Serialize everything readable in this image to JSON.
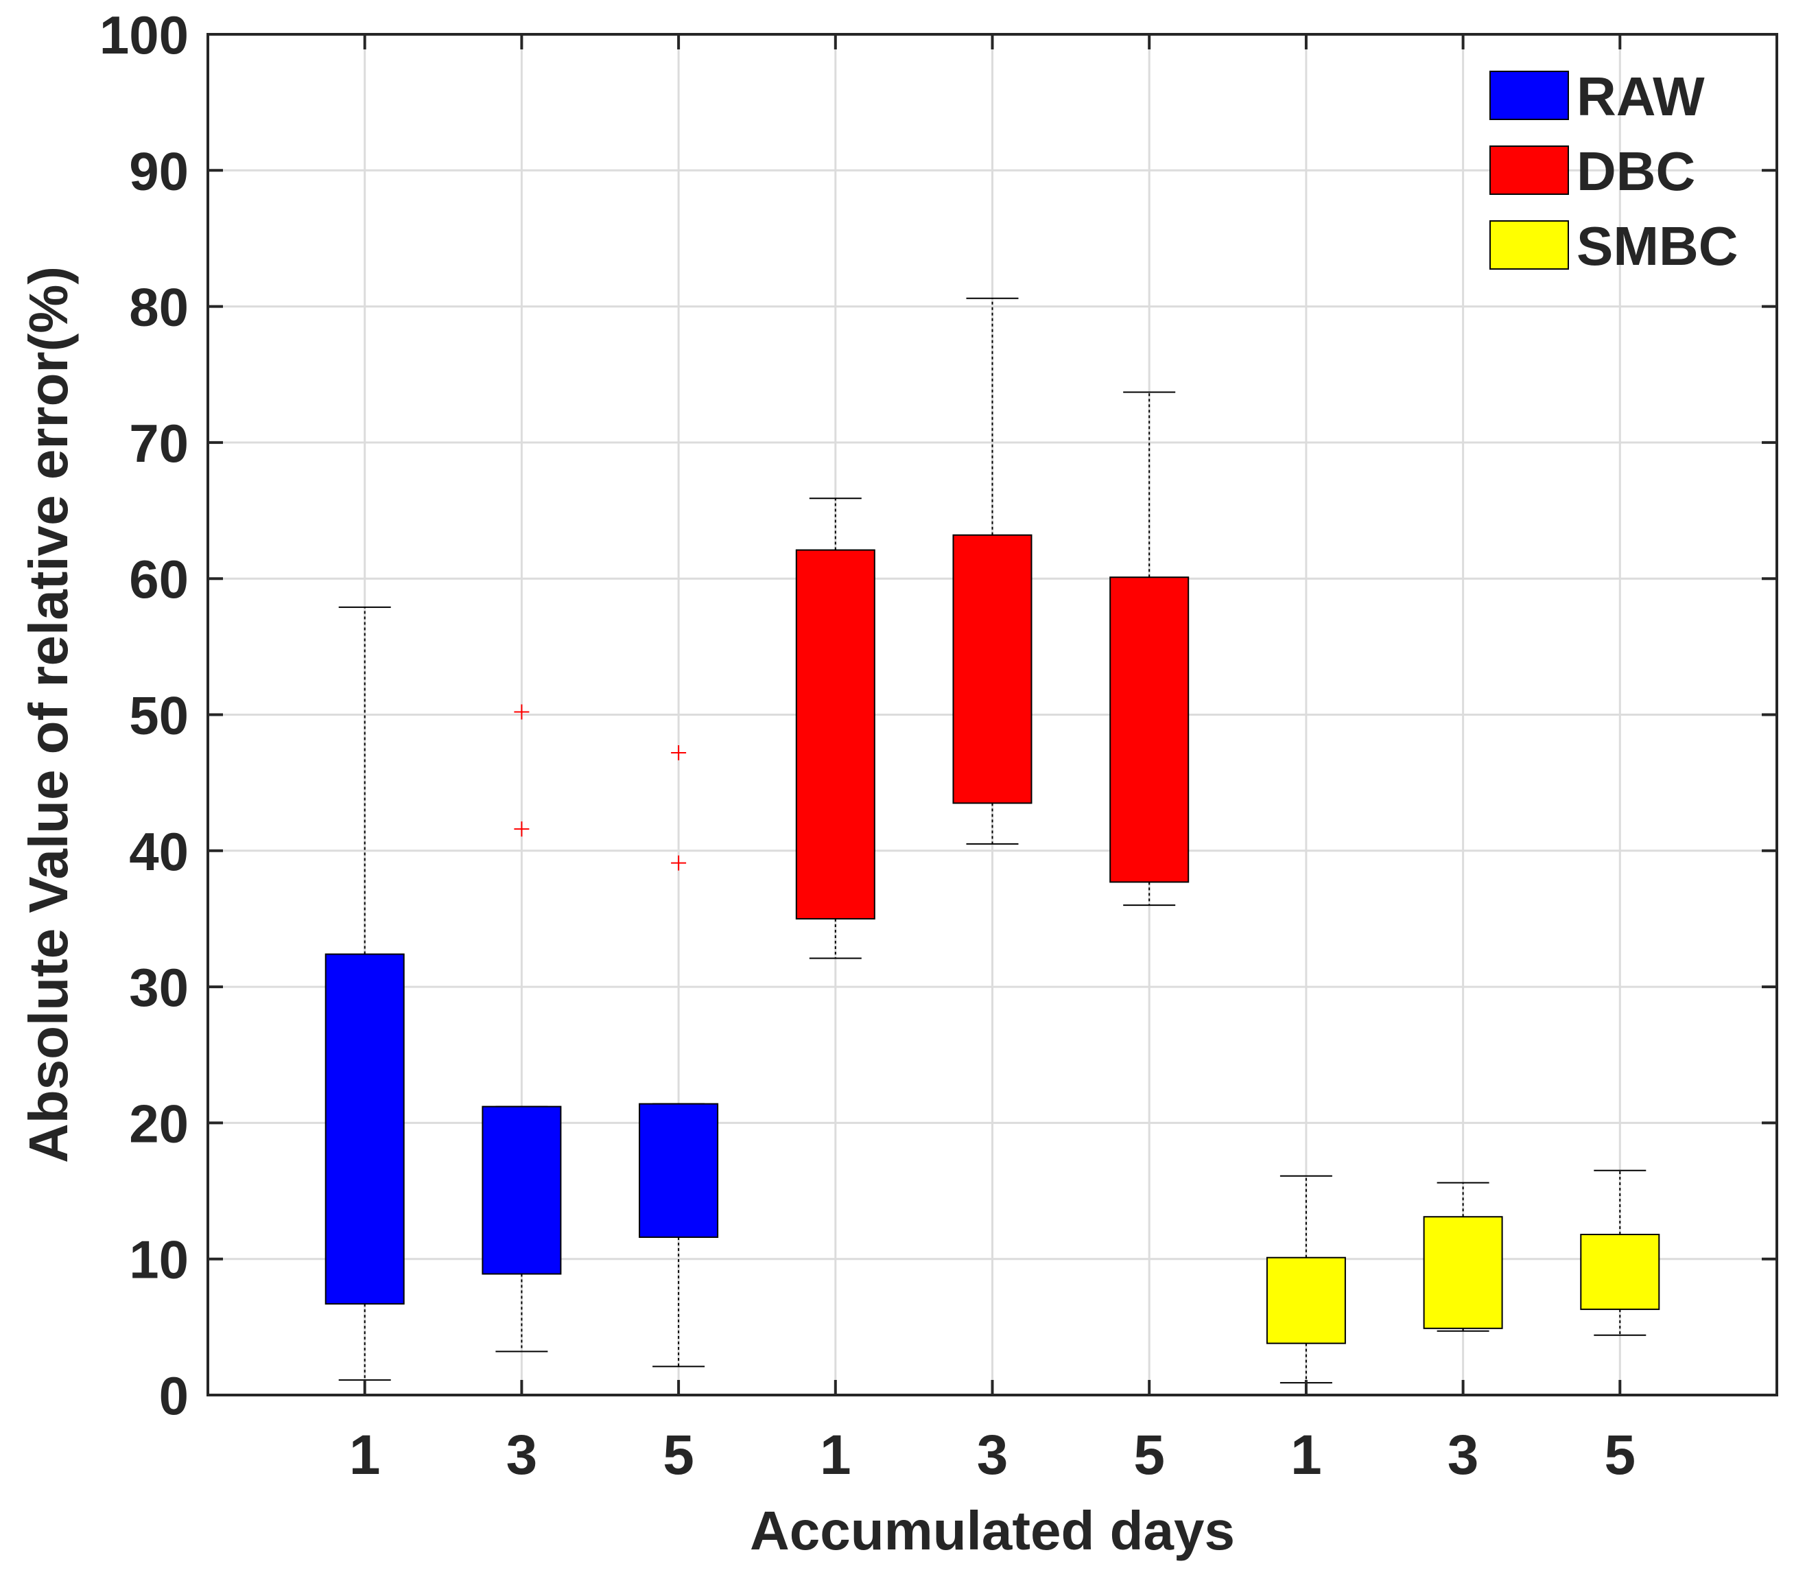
{
  "chart_data": {
    "type": "boxplot",
    "title": "",
    "xlabel": "Accumulated days",
    "ylabel": "Absolute Value of relative error(%)",
    "ylim": [
      0,
      100
    ],
    "yticks": [
      "0",
      "10",
      "20",
      "30",
      "40",
      "50",
      "60",
      "70",
      "80",
      "90",
      "100"
    ],
    "xlim": [
      0,
      10
    ],
    "grid": true,
    "legend_position": "top-right",
    "categories": [
      "1",
      "3",
      "5",
      "1",
      "3",
      "5",
      "1",
      "3",
      "5"
    ],
    "series": [
      {
        "name": "RAW",
        "color": "#0000ff",
        "boxes": [
          {
            "x": 1,
            "label": "1",
            "whisker_low": 1.1,
            "q1": 6.7,
            "q3": 32.4,
            "whisker_high": 57.9,
            "outliers": []
          },
          {
            "x": 2,
            "label": "3",
            "whisker_low": 3.2,
            "q1": 8.9,
            "q3": 21.2,
            "whisker_high": 21.2,
            "outliers": [
              41.6,
              50.2
            ]
          },
          {
            "x": 3,
            "label": "5",
            "whisker_low": 2.1,
            "q1": 11.6,
            "q3": 21.4,
            "whisker_high": 21.4,
            "outliers": [
              39.1,
              47.2
            ]
          }
        ]
      },
      {
        "name": "DBC",
        "color": "#ff0000",
        "boxes": [
          {
            "x": 4,
            "label": "1",
            "whisker_low": 32.1,
            "q1": 35.0,
            "q3": 62.1,
            "whisker_high": 65.9,
            "outliers": []
          },
          {
            "x": 5,
            "label": "3",
            "whisker_low": 40.5,
            "q1": 43.5,
            "q3": 63.2,
            "whisker_high": 80.6,
            "outliers": []
          },
          {
            "x": 6,
            "label": "5",
            "whisker_low": 36.0,
            "q1": 37.7,
            "q3": 60.1,
            "whisker_high": 73.7,
            "outliers": []
          }
        ]
      },
      {
        "name": "SMBC",
        "color": "#ffff00",
        "boxes": [
          {
            "x": 7,
            "label": "1",
            "whisker_low": 0.9,
            "q1": 3.8,
            "q3": 10.1,
            "whisker_high": 16.1,
            "outliers": []
          },
          {
            "x": 8,
            "label": "3",
            "whisker_low": 4.7,
            "q1": 4.9,
            "q3": 13.1,
            "whisker_high": 15.6,
            "outliers": []
          },
          {
            "x": 9,
            "label": "5",
            "whisker_low": 4.4,
            "q1": 6.3,
            "q3": 11.8,
            "whisker_high": 16.5,
            "outliers": []
          }
        ]
      }
    ]
  }
}
